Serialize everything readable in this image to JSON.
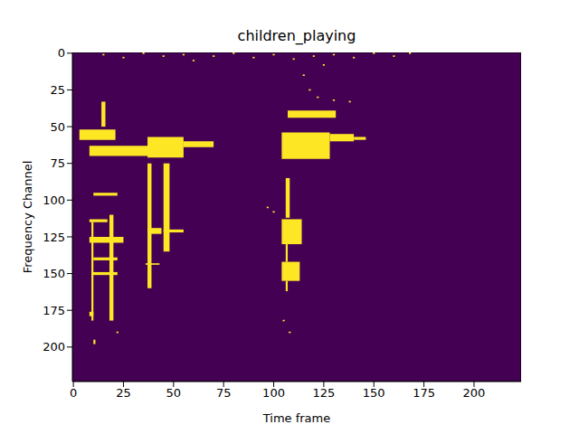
{
  "chart_data": {
    "type": "heatmap",
    "title": "children_playing",
    "x_label": "Time frame",
    "y_label": "Frequency Channel",
    "xlim": [
      -0.5,
      223.5
    ],
    "ylim": [
      -0.5,
      223.5
    ],
    "xticks": [
      0,
      25,
      50,
      75,
      100,
      125,
      150,
      175,
      200
    ],
    "yticks": [
      0,
      25,
      50,
      75,
      100,
      125,
      150,
      175,
      200
    ],
    "grid": false,
    "colors": [
      "#440154",
      "#fde725"
    ],
    "cells": [
      [
        3,
        21,
        52,
        59
      ],
      [
        8,
        38,
        63,
        70
      ],
      [
        37,
        55,
        57,
        71
      ],
      [
        55,
        70,
        60,
        64
      ],
      [
        104,
        128,
        54,
        72
      ],
      [
        128,
        140,
        55,
        60
      ],
      [
        140,
        146,
        57,
        59
      ],
      [
        107,
        131,
        39,
        44
      ],
      [
        104,
        114,
        113,
        130
      ],
      [
        104,
        113,
        142,
        155
      ],
      [
        106,
        108,
        85,
        112
      ],
      [
        106,
        107,
        130,
        142
      ],
      [
        106,
        107,
        155,
        162
      ],
      [
        9,
        10,
        115,
        182
      ],
      [
        18,
        20,
        110,
        182
      ],
      [
        10,
        22,
        95,
        97
      ],
      [
        8,
        17,
        113,
        115
      ],
      [
        8,
        25,
        125,
        129
      ],
      [
        10,
        22,
        139,
        141
      ],
      [
        9,
        22,
        149,
        151
      ],
      [
        8,
        10,
        176,
        179
      ],
      [
        37,
        39,
        75,
        160
      ],
      [
        45,
        48,
        75,
        135
      ],
      [
        37,
        44,
        119,
        123
      ],
      [
        45,
        55,
        120,
        122
      ],
      [
        36,
        43,
        143,
        144
      ],
      [
        10,
        11,
        195,
        198
      ],
      [
        14,
        16,
        33,
        50
      ]
    ],
    "speckles": [
      [
        15,
        1
      ],
      [
        25,
        3
      ],
      [
        35,
        0
      ],
      [
        45,
        2
      ],
      [
        55,
        1
      ],
      [
        60,
        5
      ],
      [
        70,
        2
      ],
      [
        80,
        0
      ],
      [
        90,
        3
      ],
      [
        100,
        1
      ],
      [
        110,
        4
      ],
      [
        120,
        2
      ],
      [
        125,
        8
      ],
      [
        130,
        1
      ],
      [
        140,
        3
      ],
      [
        150,
        0
      ],
      [
        160,
        2
      ],
      [
        168,
        0
      ],
      [
        115,
        15
      ],
      [
        118,
        25
      ],
      [
        122,
        30
      ],
      [
        130,
        32
      ],
      [
        138,
        33
      ],
      [
        97,
        105
      ],
      [
        100,
        108
      ],
      [
        108,
        190
      ],
      [
        105,
        182
      ],
      [
        22,
        190
      ]
    ]
  }
}
